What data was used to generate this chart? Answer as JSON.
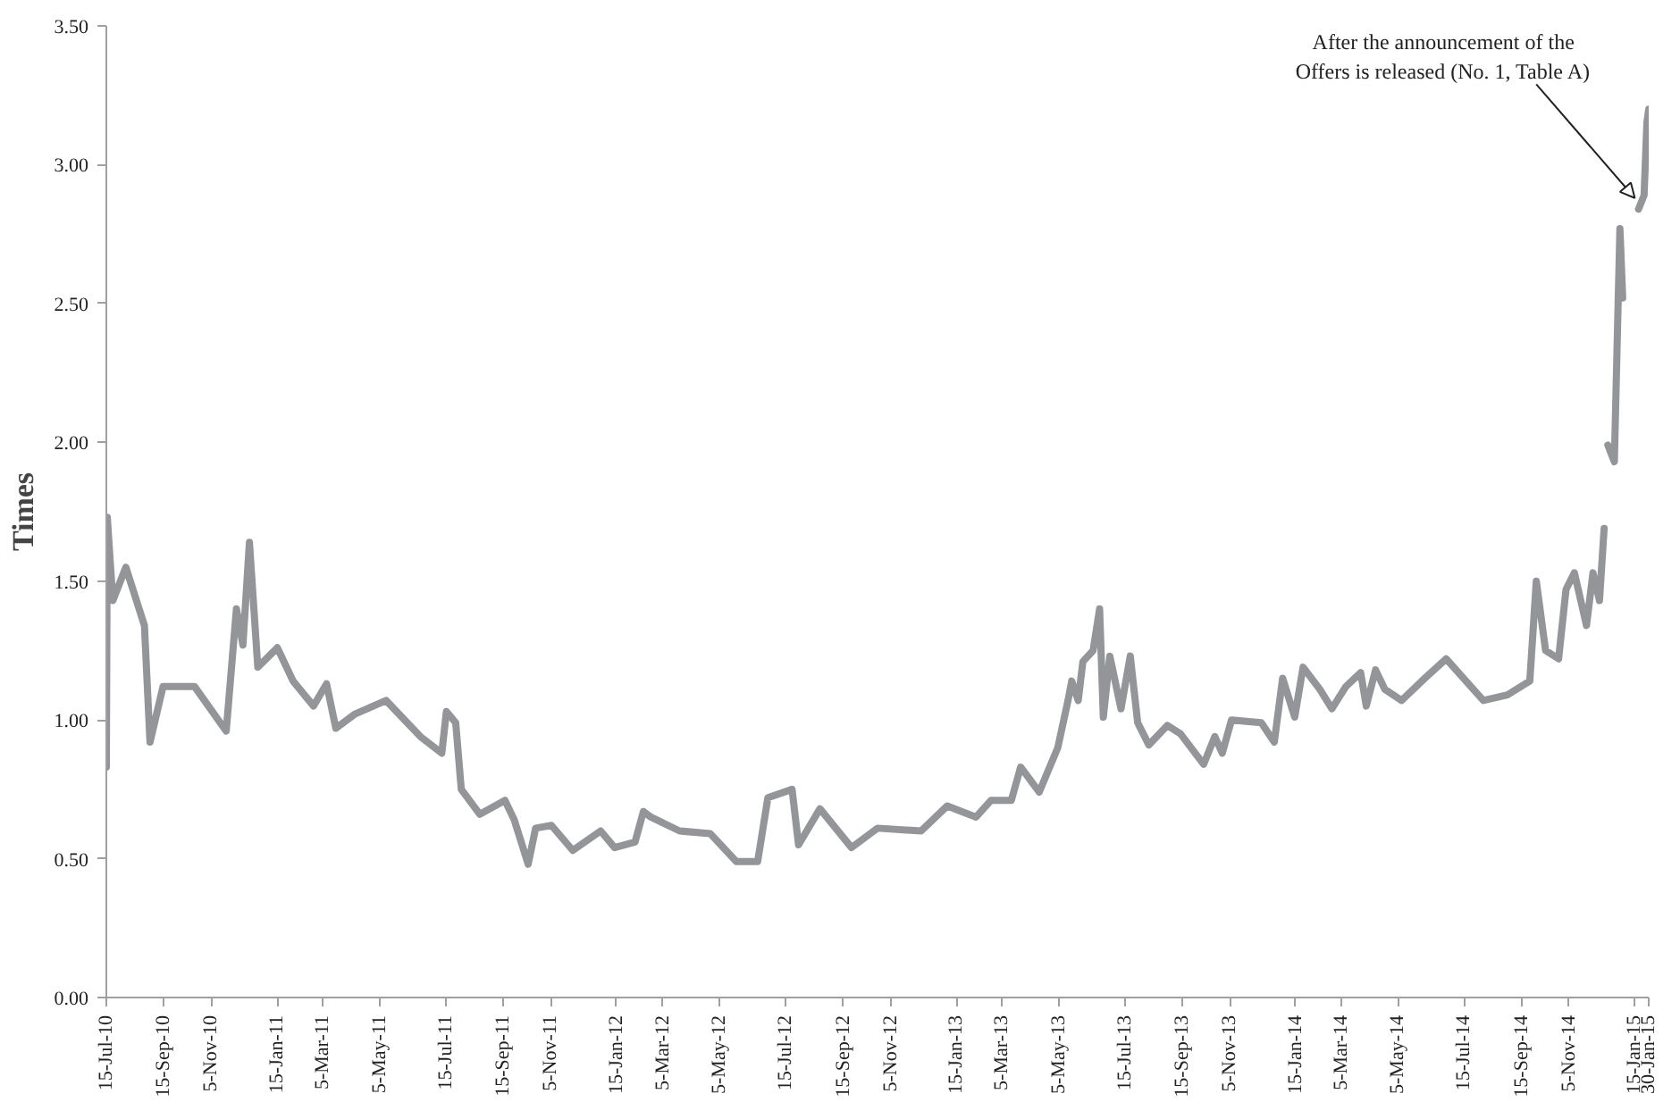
{
  "chart_data": {
    "type": "line",
    "ylabel": "Times",
    "x": [
      "2010-07-15",
      "2010-07-16",
      "2010-07-22",
      "2010-08-05",
      "2010-08-25",
      "2010-08-31",
      "2010-09-14",
      "2010-10-18",
      "2010-11-21",
      "2010-12-02",
      "2010-12-09",
      "2010-12-16",
      "2010-12-25",
      "2011-01-15",
      "2011-02-01",
      "2011-02-23",
      "2011-03-09",
      "2011-03-19",
      "2011-04-08",
      "2011-05-12",
      "2011-06-18",
      "2011-07-11",
      "2011-07-16",
      "2011-07-26",
      "2011-08-01",
      "2011-08-21",
      "2011-09-17",
      "2011-09-27",
      "2011-10-12",
      "2011-10-20",
      "2011-11-06",
      "2011-11-29",
      "2011-12-29",
      "2012-01-13",
      "2012-02-04",
      "2012-02-13",
      "2012-02-21",
      "2012-03-23",
      "2012-04-25",
      "2012-05-23",
      "2012-06-15",
      "2012-06-26",
      "2012-07-22",
      "2012-07-29",
      "2012-08-21",
      "2012-09-24",
      "2012-10-22",
      "2012-12-08",
      "2013-01-05",
      "2013-02-05",
      "2013-02-21",
      "2013-03-15",
      "2013-03-25",
      "2013-04-14",
      "2013-05-04",
      "2013-05-15",
      "2013-05-19",
      "2013-05-26",
      "2013-05-31",
      "2013-06-11",
      "2013-06-18",
      "2013-06-22",
      "2013-06-29",
      "2013-07-11",
      "2013-07-21",
      "2013-07-29",
      "2013-08-10",
      "2013-08-30",
      "2013-09-13",
      "2013-10-08",
      "2013-10-20",
      "2013-10-28",
      "2013-11-07",
      "2013-12-09",
      "2013-12-23",
      "2014-01-01",
      "2014-01-14",
      "2014-01-23",
      "2014-02-10",
      "2014-02-23",
      "2014-03-10",
      "2014-03-26",
      "2014-04-01",
      "2014-04-11",
      "2014-04-21",
      "2014-05-09",
      "2014-06-03",
      "2014-06-26",
      "2014-08-05",
      "2014-08-31",
      "2014-09-24",
      "2014-10-01",
      "2014-10-11",
      "2014-10-25",
      "2014-11-02",
      "2014-11-11",
      "2014-11-24",
      "2014-12-01",
      "2014-12-08",
      "2014-12-13",
      "2014-12-15",
      "2014-12-17",
      "2014-12-24",
      "2014-12-30",
      "2015-01-02",
      "2015-01-05",
      "2015-01-19",
      "2015-01-25",
      "2015-01-28",
      "2015-01-30"
    ],
    "series": [
      {
        "color": "#939598",
        "values": [
          0.83,
          1.73,
          1.43,
          1.55,
          1.34,
          0.92,
          1.12,
          1.12,
          0.96,
          1.4,
          1.27,
          1.64,
          1.19,
          1.26,
          1.14,
          1.05,
          1.13,
          0.97,
          1.02,
          1.07,
          0.94,
          0.88,
          1.03,
          0.99,
          0.75,
          0.66,
          0.71,
          0.64,
          0.48,
          0.61,
          0.62,
          0.53,
          0.6,
          0.54,
          0.56,
          0.67,
          0.65,
          0.6,
          0.59,
          0.49,
          0.49,
          0.72,
          0.75,
          0.55,
          0.68,
          0.54,
          0.61,
          0.6,
          0.69,
          0.65,
          0.71,
          0.71,
          0.83,
          0.74,
          0.9,
          1.07,
          1.14,
          1.07,
          1.21,
          1.25,
          1.4,
          1.01,
          1.23,
          1.04,
          1.23,
          0.99,
          0.91,
          0.98,
          0.95,
          0.84,
          0.94,
          0.88,
          1.0,
          0.99,
          0.92,
          1.15,
          1.01,
          1.19,
          1.11,
          1.04,
          1.12,
          1.17,
          1.05,
          1.18,
          1.11,
          1.07,
          1.15,
          1.22,
          1.07,
          1.09,
          1.14,
          1.5,
          1.25,
          1.22,
          1.47,
          1.53,
          1.34,
          1.53,
          1.43,
          1.69,
          null,
          1.99,
          1.93,
          2.77,
          2.52,
          null,
          2.84,
          2.89,
          3.15,
          3.2
        ]
      }
    ],
    "xlim": [
      "2010-07-15",
      "2015-01-30"
    ],
    "xticks": [
      {
        "value": "2010-07-15",
        "label": "15-Jul-10"
      },
      {
        "value": "2010-09-15",
        "label": "15-Sep-10"
      },
      {
        "value": "2010-11-05",
        "label": "5-Nov-10"
      },
      {
        "value": "2011-01-15",
        "label": "15-Jan-11"
      },
      {
        "value": "2011-03-05",
        "label": "5-Mar-11"
      },
      {
        "value": "2011-05-05",
        "label": "5-May-11"
      },
      {
        "value": "2011-07-15",
        "label": "15-Jul-11"
      },
      {
        "value": "2011-09-15",
        "label": "15-Sep-11"
      },
      {
        "value": "2011-11-05",
        "label": "5-Nov-11"
      },
      {
        "value": "2012-01-15",
        "label": "15-Jan-12"
      },
      {
        "value": "2012-03-05",
        "label": "5-Mar-12"
      },
      {
        "value": "2012-05-05",
        "label": "5-May-12"
      },
      {
        "value": "2012-07-15",
        "label": "15-Jul-12"
      },
      {
        "value": "2012-09-15",
        "label": "15-Sep-12"
      },
      {
        "value": "2012-11-05",
        "label": "5-Nov-12"
      },
      {
        "value": "2013-01-15",
        "label": "15-Jan-13"
      },
      {
        "value": "2013-03-05",
        "label": "5-Mar-13"
      },
      {
        "value": "2013-05-05",
        "label": "5-May-13"
      },
      {
        "value": "2013-07-15",
        "label": "15-Jul-13"
      },
      {
        "value": "2013-09-15",
        "label": "15-Sep-13"
      },
      {
        "value": "2013-11-05",
        "label": "5-Nov-13"
      },
      {
        "value": "2014-01-15",
        "label": "15-Jan-14"
      },
      {
        "value": "2014-03-05",
        "label": "5-Mar-14"
      },
      {
        "value": "2014-05-05",
        "label": "5-May-14"
      },
      {
        "value": "2014-07-15",
        "label": "15-Jul-14"
      },
      {
        "value": "2014-09-15",
        "label": "15-Sep-14"
      },
      {
        "value": "2014-11-05",
        "label": "5-Nov-14"
      },
      {
        "value": "2015-01-15",
        "label": "15-Jan-15"
      },
      {
        "value": "2015-01-30",
        "label": "30-Jan-15"
      }
    ],
    "ylim": [
      0,
      3.5
    ],
    "yticks": [
      {
        "value": 0,
        "label": "0.00"
      },
      {
        "value": 0.5,
        "label": "0.50"
      },
      {
        "value": 1,
        "label": "1.00"
      },
      {
        "value": 1.5,
        "label": "1.50"
      },
      {
        "value": 2,
        "label": "2.00"
      },
      {
        "value": 2.5,
        "label": "2.50"
      },
      {
        "value": 3,
        "label": "3.00"
      },
      {
        "value": 3.5,
        "label": "3.50"
      }
    ],
    "grid": false,
    "marker": "none",
    "line_style": "solid",
    "annotations": [
      {
        "text": "After the announcement of the\nOffers is released (No. 1, Table A)",
        "x": "2015-01-19",
        "y": 2.84
      }
    ]
  }
}
